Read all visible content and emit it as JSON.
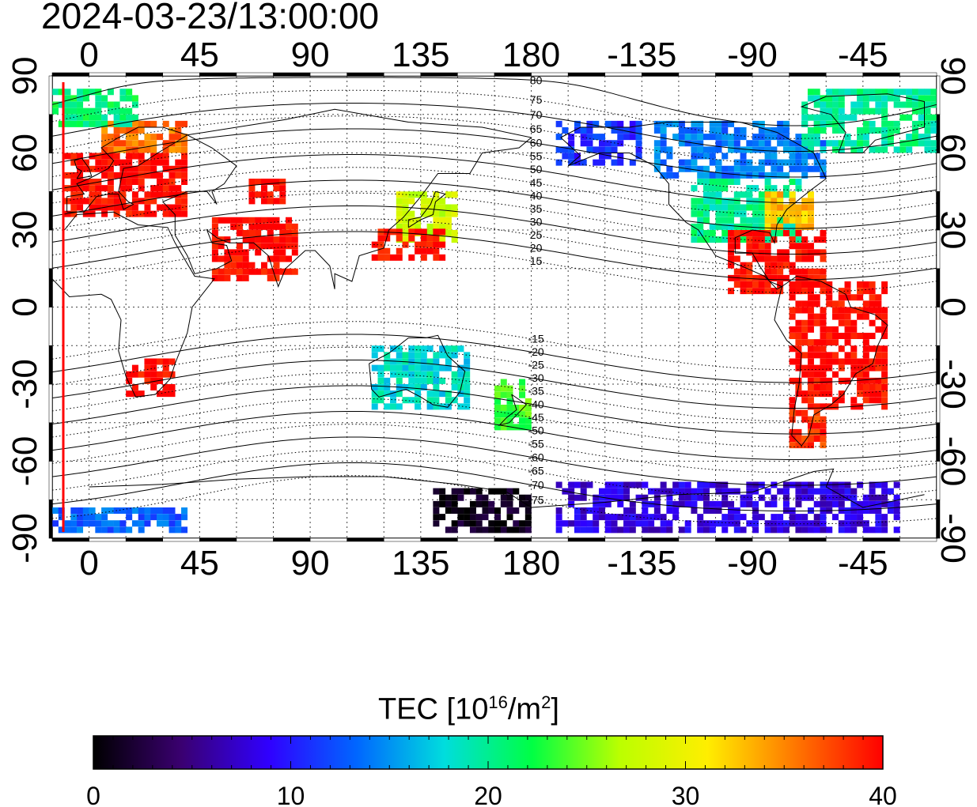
{
  "timestamp": "2024-03-23/13:00:00",
  "axes": {
    "x_ticks": [
      0,
      45,
      90,
      135,
      180,
      -135,
      -90,
      -45
    ],
    "x_tick_labels": [
      "0",
      "45",
      "90",
      "135",
      "180",
      "-135",
      "-90",
      "-45"
    ],
    "x_range_deg": [
      -15,
      345
    ],
    "y_ticks": [
      90,
      60,
      30,
      0,
      -30,
      -60,
      -90
    ],
    "y_tick_labels": [
      "90",
      "60",
      "30",
      "0",
      "-30",
      "-60",
      "-90"
    ],
    "y_range_deg": [
      -90,
      90
    ],
    "grid": "dotted",
    "frame_tick_bars": "alternating black/white every 15 degrees"
  },
  "sunline": {
    "longitude_deg": -15,
    "color": "#ff0000"
  },
  "contours": {
    "labels_north": [
      "80",
      "75",
      "70",
      "65",
      "60",
      "55",
      "50",
      "45",
      "40",
      "35",
      "30",
      "25",
      "20",
      "15"
    ],
    "labels_south": [
      "-15",
      "-20",
      "-25",
      "-30",
      "-35",
      "-40",
      "-45",
      "-50",
      "-55",
      "-60",
      "-65",
      "-70",
      "-75"
    ],
    "label_longitude_deg": 180
  },
  "colorbar": {
    "title_main": "TEC  [10",
    "title_sup1": "16",
    "title_mid": "/m",
    "title_sup2": "2",
    "title_end": "]",
    "min": 0,
    "max": 40,
    "tick_values": [
      0,
      10,
      20,
      30,
      40
    ],
    "tick_labels": [
      "0",
      "10",
      "20",
      "30",
      "40"
    ],
    "colormap_stops": [
      "#000000",
      "#3a0070",
      "#3000ff",
      "#0066ff",
      "#00dddd",
      "#00ff44",
      "#bbff00",
      "#ffee00",
      "#ff7700",
      "#ff0000"
    ]
  },
  "tec_regions": [
    {
      "name": "north-america-midlat",
      "lon": [
        -115,
        -70
      ],
      "lat": [
        25,
        48
      ],
      "tec": 20
    },
    {
      "name": "canada",
      "lon": [
        -130,
        -60
      ],
      "lat": [
        50,
        72
      ],
      "tec": 14
    },
    {
      "name": "alaska",
      "lon": [
        -170,
        -135
      ],
      "lat": [
        55,
        72
      ],
      "tec": 11
    },
    {
      "name": "us-east-coast",
      "lon": [
        -85,
        -65
      ],
      "lat": [
        30,
        45
      ],
      "tec": 33
    },
    {
      "name": "caribbean-central-america",
      "lon": [
        -100,
        -60
      ],
      "lat": [
        5,
        28
      ],
      "tec": 40
    },
    {
      "name": "south-america",
      "lon": [
        -75,
        -35
      ],
      "lat": [
        -40,
        10
      ],
      "tec": 40
    },
    {
      "name": "patagonia",
      "lon": [
        -75,
        -60
      ],
      "lat": [
        -55,
        -40
      ],
      "tec": 38
    },
    {
      "name": "greenland-arctic",
      "lon": [
        -70,
        -15
      ],
      "lat": [
        60,
        85
      ],
      "tec": 20
    },
    {
      "name": "europe",
      "lon": [
        -10,
        40
      ],
      "lat": [
        35,
        60
      ],
      "tec": 40
    },
    {
      "name": "scandinavia",
      "lon": [
        5,
        40
      ],
      "lat": [
        60,
        72
      ],
      "tec": 36
    },
    {
      "name": "arctic-atlantic",
      "lon": [
        -15,
        20
      ],
      "lat": [
        70,
        85
      ],
      "tec": 21
    },
    {
      "name": "japan-east-asia",
      "lon": [
        125,
        150
      ],
      "lat": [
        25,
        45
      ],
      "tec": 28
    },
    {
      "name": "east-china",
      "lon": [
        115,
        145
      ],
      "lat": [
        18,
        30
      ],
      "tec": 40
    },
    {
      "name": "india-middle-east",
      "lon": [
        50,
        85
      ],
      "lat": [
        10,
        35
      ],
      "tec": 40
    },
    {
      "name": "central-asia",
      "lon": [
        65,
        80
      ],
      "lat": [
        40,
        50
      ],
      "tec": 40
    },
    {
      "name": "southern-africa",
      "lon": [
        15,
        35
      ],
      "lat": [
        -35,
        -20
      ],
      "tec": 40
    },
    {
      "name": "australia",
      "lon": [
        115,
        155
      ],
      "lat": [
        -40,
        -15
      ],
      "tec": 18
    },
    {
      "name": "new-zealand",
      "lon": [
        165,
        180
      ],
      "lat": [
        -48,
        -30
      ],
      "tec": 24
    },
    {
      "name": "antarctica-west",
      "lon": [
        -170,
        -30
      ],
      "lat": [
        -88,
        -70
      ],
      "tec": 8
    },
    {
      "name": "antarctica-east",
      "lon": [
        140,
        180
      ],
      "lat": [
        -88,
        -72
      ],
      "tec": 1
    },
    {
      "name": "antarctica-atlantic",
      "lon": [
        -15,
        40
      ],
      "lat": [
        -88,
        -80
      ],
      "tec": 13
    }
  ]
}
